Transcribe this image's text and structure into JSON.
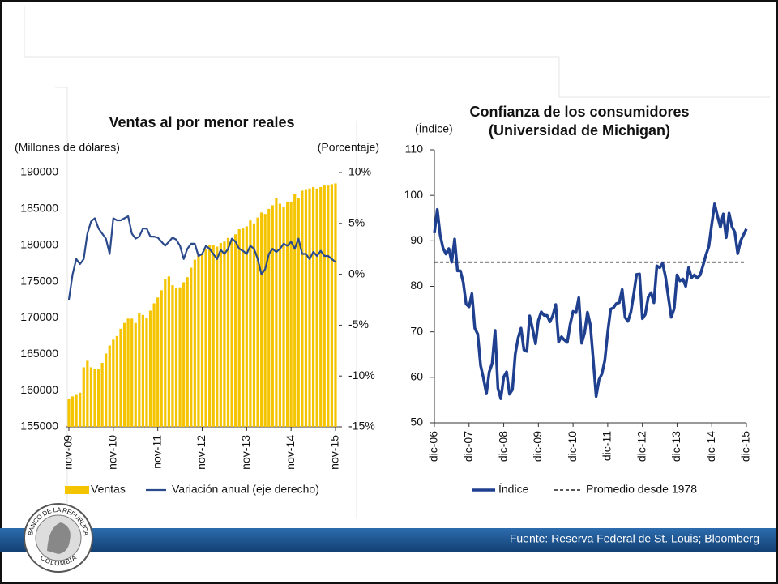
{
  "chart_data": [
    {
      "type": "bar-line",
      "title": [
        "Ventas al por menor reales"
      ],
      "y_label": "(Millones de dólares)",
      "y2_label": "(Porcentaje)",
      "categories": [
        "nov-09",
        null,
        null,
        null,
        null,
        null,
        null,
        null,
        null,
        null,
        null,
        null,
        "nov-10",
        null,
        null,
        null,
        null,
        null,
        null,
        null,
        null,
        null,
        null,
        null,
        "nov-11",
        null,
        null,
        null,
        null,
        null,
        null,
        null,
        null,
        null,
        null,
        null,
        "nov-12",
        null,
        null,
        null,
        null,
        null,
        null,
        null,
        null,
        null,
        null,
        null,
        "nov-13",
        null,
        null,
        null,
        null,
        null,
        null,
        null,
        null,
        null,
        null,
        null,
        "nov-14",
        null,
        null,
        null,
        null,
        null,
        null,
        null,
        null,
        null,
        null,
        null,
        "nov-15"
      ],
      "ylim": [
        155000,
        190000
      ],
      "yticks": [
        155000,
        160000,
        165000,
        170000,
        175000,
        180000,
        185000,
        190000
      ],
      "y2lim": [
        -15,
        10
      ],
      "y2ticks": [
        {
          "value": -15,
          "label": "-15%"
        },
        {
          "value": -10,
          "label": "-10%"
        },
        {
          "value": -5,
          "label": "-5%"
        },
        {
          "value": 0,
          "label": "0%"
        },
        {
          "value": 5,
          "label": "5%"
        },
        {
          "value": 10,
          "label": "10%"
        }
      ],
      "series": [
        {
          "name": "Ventas",
          "kind": "bar",
          "color": "#f5c400",
          "values": [
            158800,
            159200,
            159400,
            159700,
            163200,
            164100,
            163200,
            163000,
            163000,
            163800,
            165100,
            166200,
            167000,
            167500,
            168500,
            169300,
            169900,
            169900,
            169300,
            170600,
            170400,
            170000,
            171000,
            172000,
            172800,
            173800,
            175300,
            175700,
            174500,
            174100,
            174200,
            174900,
            175600,
            176900,
            178000,
            178600,
            178900,
            179500,
            180000,
            180000,
            179800,
            180300,
            180500,
            181000,
            180800,
            181500,
            182200,
            182300,
            182600,
            183400,
            183000,
            183800,
            184500,
            184300,
            185000,
            185500,
            186500,
            185700,
            185200,
            186000,
            186000,
            187000,
            186500,
            187500,
            187700,
            187800,
            188000,
            187800,
            188000,
            188200,
            188200,
            188400,
            188500
          ]
        },
        {
          "name": "Variación anual (eje derecho)",
          "kind": "line",
          "axis": "y2",
          "color": "#2a4a8c",
          "values": [
            -2.5,
            0,
            1.5,
            1,
            1.5,
            4,
            5.2,
            5.5,
            4.5,
            4,
            3.5,
            2,
            5.5,
            5.3,
            5.3,
            5.5,
            5.7,
            4,
            3.5,
            3.7,
            4.5,
            4.5,
            3.7,
            3.7,
            3.6,
            3.2,
            2.8,
            3.2,
            3.6,
            3.4,
            2.8,
            1.5,
            2.5,
            3,
            3,
            1.8,
            2,
            2.8,
            2.5,
            2,
            1.5,
            2.4,
            2,
            2.5,
            3.5,
            3.2,
            2.5,
            2.3,
            2,
            2.8,
            2.5,
            1.5,
            0,
            0.5,
            2,
            2.5,
            2.2,
            2.5,
            3,
            2.8,
            3.2,
            2.5,
            3.5,
            2,
            2,
            1.5,
            2.2,
            1.8,
            2.3,
            1.8,
            1.8,
            1.5,
            1.2
          ]
        }
      ]
    },
    {
      "type": "line",
      "title": [
        "Confianza de los consumidores",
        "(Universidad de Michigan)"
      ],
      "y_label": "(Índice)",
      "categories": [
        "dic-06",
        null,
        null,
        null,
        null,
        null,
        null,
        null,
        null,
        null,
        null,
        null,
        "dic-07",
        null,
        null,
        null,
        null,
        null,
        null,
        null,
        null,
        null,
        null,
        null,
        "dic-08",
        null,
        null,
        null,
        null,
        null,
        null,
        null,
        null,
        null,
        null,
        null,
        "dic-09",
        null,
        null,
        null,
        null,
        null,
        null,
        null,
        null,
        null,
        null,
        null,
        "dic-10",
        null,
        null,
        null,
        null,
        null,
        null,
        null,
        null,
        null,
        null,
        null,
        "dic-11",
        null,
        null,
        null,
        null,
        null,
        null,
        null,
        null,
        null,
        null,
        null,
        "dic-12",
        null,
        null,
        null,
        null,
        null,
        null,
        null,
        null,
        null,
        null,
        null,
        "dic-13",
        null,
        null,
        null,
        null,
        null,
        null,
        null,
        null,
        null,
        null,
        null,
        "dic-14",
        null,
        null,
        null,
        null,
        null,
        null,
        null,
        null,
        null,
        null,
        null,
        "dic-15"
      ],
      "ylim": [
        50,
        110
      ],
      "yticks": [
        50,
        60,
        70,
        80,
        90,
        100,
        110
      ],
      "series": [
        {
          "name": "Índice",
          "kind": "line",
          "color": "#1f3f8f",
          "values": [
            91.7,
            96.9,
            91.3,
            88.4,
            87.1,
            88.3,
            85.3,
            90.4,
            83.4,
            83.4,
            80.9,
            76.1,
            75.5,
            78.4,
            70.8,
            69.5,
            62.6,
            59.8,
            56.4,
            61.2,
            63,
            70.3,
            57.6,
            55.3,
            60.1,
            61.2,
            56.3,
            57.3,
            65.1,
            68.7,
            70.8,
            66,
            65.7,
            73.5,
            70.6,
            67.4,
            72.5,
            74.4,
            73.6,
            73.6,
            72.2,
            73.6,
            76,
            67.8,
            68.9,
            68.2,
            67.7,
            71.6,
            74.5,
            74.2,
            77.5,
            67.5,
            69.8,
            74.3,
            71.5,
            63.7,
            55.8,
            59.5,
            60.8,
            63.7,
            69.9,
            75,
            75.3,
            76.2,
            76.4,
            79.3,
            73.2,
            72.3,
            74.3,
            78.3,
            82.6,
            82.7,
            72.9,
            73.8,
            77.6,
            78.6,
            76.4,
            84.5,
            84.1,
            85.1,
            82.1,
            77.5,
            73.2,
            75.1,
            82.5,
            81.2,
            81.6,
            80,
            84.1,
            81.9,
            82.5,
            81.8,
            82.5,
            84.6,
            86.9,
            88.8,
            93.6,
            98.1,
            95.4,
            93,
            95.9,
            90.7,
            96.1,
            93.1,
            91.9,
            87.2,
            90,
            91.3,
            92.6
          ]
        }
      ],
      "reference_line": {
        "name": "Promedio desde 1978",
        "value": 85.3,
        "color": "#222222"
      }
    }
  ],
  "footer": {
    "source": "Fuente: Reserva Federal de St. Louis; Bloomberg",
    "logo_top": "BANCO DE LA REPUBLICA",
    "logo_bottom": "COLOMBIA"
  }
}
